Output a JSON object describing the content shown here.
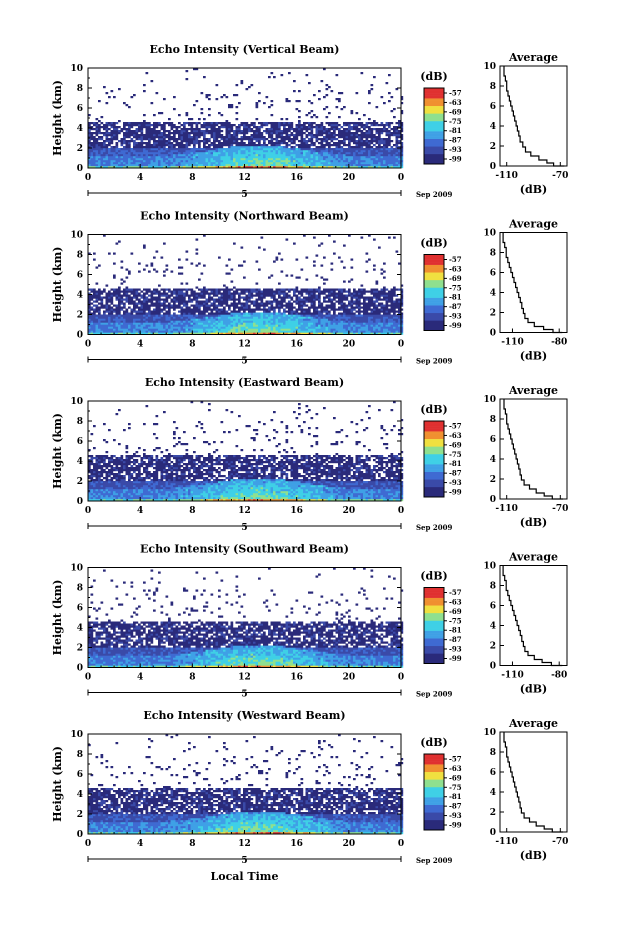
{
  "chart_data": [
    {
      "type": "heatmap",
      "title": "Echo Intensity (Vertical Beam)",
      "ylabel": "Height (km)",
      "xticks": [
        "0",
        "4",
        "8",
        "12",
        "16",
        "20",
        "0"
      ],
      "yticks": [
        "0",
        "2",
        "4",
        "6",
        "8",
        "10"
      ],
      "xlim": [
        0,
        24
      ],
      "ylim": [
        0,
        10
      ],
      "date_label": "5",
      "date_suffix": "Sep 2009",
      "colorbar": {
        "label": "(dB)",
        "ticks": [
          "-57",
          "-63",
          "-69",
          "-75",
          "-81",
          "-87",
          "-93",
          "-99"
        ],
        "range": [
          -99,
          -57
        ]
      },
      "profile": {
        "title": "Average",
        "xlabel": "(dB)",
        "xticks": [
          "-110",
          "-70"
        ],
        "xlim": [
          -115,
          -65
        ],
        "ylim": [
          0,
          10
        ],
        "yticks": [
          "0",
          "2",
          "4",
          "6",
          "8",
          "10"
        ],
        "x": [
          -67,
          -75,
          -80,
          -86,
          -92,
          -96,
          -98,
          -100,
          -101,
          -102,
          -103,
          -104,
          -105,
          -106,
          -107,
          -108,
          -109,
          -110,
          -110,
          -111,
          -112,
          -112
        ],
        "y": [
          0,
          0.3,
          0.6,
          1.0,
          1.4,
          1.9,
          2.4,
          3.0,
          3.5,
          4.0,
          4.5,
          5.0,
          5.5,
          6.0,
          6.5,
          7.0,
          7.5,
          8.0,
          8.5,
          9.0,
          9.5,
          10
        ]
      }
    },
    {
      "type": "heatmap",
      "title": "Echo Intensity (Northward Beam)",
      "ylabel": "Height (km)",
      "xticks": [
        "0",
        "4",
        "8",
        "12",
        "16",
        "20",
        "0"
      ],
      "yticks": [
        "0",
        "2",
        "4",
        "6",
        "8",
        "10"
      ],
      "xlim": [
        0,
        24
      ],
      "ylim": [
        0,
        10
      ],
      "date_label": "5",
      "date_suffix": "Sep 2009",
      "colorbar": {
        "label": "(dB)",
        "ticks": [
          "-57",
          "-63",
          "-69",
          "-75",
          "-81",
          "-87",
          "-93",
          "-99"
        ],
        "range": [
          -99,
          -57
        ]
      },
      "profile": {
        "title": "Average",
        "xlabel": "(dB)",
        "xticks": [
          "-110",
          "-80"
        ],
        "xlim": [
          -118,
          -75
        ],
        "ylim": [
          0,
          10
        ],
        "yticks": [
          "0",
          "2",
          "4",
          "6",
          "8",
          "10"
        ],
        "x": [
          -78,
          -84,
          -90,
          -96,
          -100,
          -102,
          -103,
          -104,
          -105,
          -106,
          -107,
          -108,
          -109,
          -110,
          -111,
          -112,
          -113,
          -114,
          -114,
          -115,
          -116,
          -116
        ],
        "y": [
          0,
          0.3,
          0.6,
          1.0,
          1.4,
          1.9,
          2.4,
          3.0,
          3.5,
          4.0,
          4.5,
          5.0,
          5.5,
          6.0,
          6.5,
          7.0,
          7.5,
          8.0,
          8.5,
          9.0,
          9.5,
          10
        ]
      }
    },
    {
      "type": "heatmap",
      "title": "Echo Intensity (Eastward Beam)",
      "ylabel": "Height (km)",
      "xticks": [
        "0",
        "4",
        "8",
        "12",
        "16",
        "20",
        "0"
      ],
      "yticks": [
        "0",
        "2",
        "4",
        "6",
        "8",
        "10"
      ],
      "xlim": [
        0,
        24
      ],
      "ylim": [
        0,
        10
      ],
      "date_label": "5",
      "date_suffix": "Sep 2009",
      "colorbar": {
        "label": "(dB)",
        "ticks": [
          "-57",
          "-63",
          "-69",
          "-75",
          "-81",
          "-87",
          "-93",
          "-99"
        ],
        "range": [
          -99,
          -57
        ]
      },
      "profile": {
        "title": "Average",
        "xlabel": "(dB)",
        "xticks": [
          "-110",
          "-70"
        ],
        "xlim": [
          -115,
          -65
        ],
        "ylim": [
          0,
          10
        ],
        "yticks": [
          "0",
          "2",
          "4",
          "6",
          "8",
          "10"
        ],
        "x": [
          -68,
          -76,
          -82,
          -88,
          -93,
          -97,
          -99,
          -100,
          -101,
          -102,
          -103,
          -104,
          -105,
          -106,
          -107,
          -108,
          -109,
          -110,
          -110,
          -111,
          -112,
          -112
        ],
        "y": [
          0,
          0.3,
          0.6,
          1.0,
          1.4,
          1.9,
          2.4,
          3.0,
          3.5,
          4.0,
          4.5,
          5.0,
          5.5,
          6.0,
          6.5,
          7.0,
          7.5,
          8.0,
          8.5,
          9.0,
          9.5,
          10
        ]
      }
    },
    {
      "type": "heatmap",
      "title": "Echo Intensity (Southward Beam)",
      "ylabel": "Height (km)",
      "xticks": [
        "0",
        "4",
        "8",
        "12",
        "16",
        "20",
        "0"
      ],
      "yticks": [
        "0",
        "2",
        "4",
        "6",
        "8",
        "10"
      ],
      "xlim": [
        0,
        24
      ],
      "ylim": [
        0,
        10
      ],
      "date_label": "5",
      "date_suffix": "Sep 2009",
      "colorbar": {
        "label": "(dB)",
        "ticks": [
          "-57",
          "-63",
          "-69",
          "-75",
          "-81",
          "-87",
          "-93",
          "-99"
        ],
        "range": [
          -99,
          -57
        ]
      },
      "profile": {
        "title": "Average",
        "xlabel": "(dB)",
        "xticks": [
          "-110",
          "-80"
        ],
        "xlim": [
          -118,
          -75
        ],
        "ylim": [
          0,
          10
        ],
        "yticks": [
          "0",
          "2",
          "4",
          "6",
          "8",
          "10"
        ],
        "x": [
          -78,
          -85,
          -91,
          -96,
          -100,
          -102,
          -103,
          -104,
          -105,
          -106,
          -107,
          -108,
          -109,
          -110,
          -111,
          -112,
          -113,
          -114,
          -114,
          -115,
          -116,
          -116
        ],
        "y": [
          0,
          0.3,
          0.6,
          1.0,
          1.4,
          1.9,
          2.4,
          3.0,
          3.5,
          4.0,
          4.5,
          5.0,
          5.5,
          6.0,
          6.5,
          7.0,
          7.5,
          8.0,
          8.5,
          9.0,
          9.5,
          10
        ]
      }
    },
    {
      "type": "heatmap",
      "title": "Echo Intensity (Westward Beam)",
      "ylabel": "Height (km)",
      "xlabel": "Local Time",
      "xticks": [
        "0",
        "4",
        "8",
        "12",
        "16",
        "20",
        "0"
      ],
      "yticks": [
        "0",
        "2",
        "4",
        "6",
        "8",
        "10"
      ],
      "xlim": [
        0,
        24
      ],
      "ylim": [
        0,
        10
      ],
      "date_label": "5",
      "date_suffix": "Sep 2009",
      "colorbar": {
        "label": "(dB)",
        "ticks": [
          "-57",
          "-63",
          "-69",
          "-75",
          "-81",
          "-87",
          "-93",
          "-99"
        ],
        "range": [
          -99,
          -57
        ]
      },
      "profile": {
        "title": "Average",
        "xlabel": "(dB)",
        "xticks": [
          "-110",
          "-70"
        ],
        "xlim": [
          -115,
          -65
        ],
        "ylim": [
          0,
          10
        ],
        "yticks": [
          "0",
          "2",
          "4",
          "6",
          "8",
          "10"
        ],
        "x": [
          -68,
          -76,
          -82,
          -88,
          -93,
          -97,
          -99,
          -100,
          -101,
          -102,
          -103,
          -104,
          -105,
          -106,
          -107,
          -108,
          -109,
          -110,
          -110,
          -111,
          -112,
          -112
        ],
        "y": [
          0,
          0.3,
          0.6,
          1.0,
          1.4,
          1.9,
          2.4,
          3.0,
          3.5,
          4.0,
          4.5,
          5.0,
          5.5,
          6.0,
          6.5,
          7.0,
          7.5,
          8.0,
          8.5,
          9.0,
          9.5,
          10
        ]
      }
    }
  ],
  "colors": [
    "#2a2a7a",
    "#3a4aa8",
    "#3f6ad2",
    "#3fa0e6",
    "#3fd0e6",
    "#8fe08f",
    "#f0e040",
    "#f09030",
    "#e03030"
  ]
}
